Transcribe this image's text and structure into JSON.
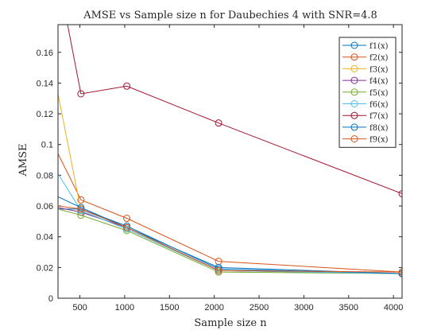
{
  "chart_data": {
    "type": "line",
    "title": "AMSE vs Sample size n for Daubechies 4 with SNR=4.8",
    "xlabel": "Sample size n",
    "ylabel": "AMSE",
    "xlim": [
      256,
      4096
    ],
    "ylim": [
      0,
      0.178
    ],
    "xticks": [
      500,
      1000,
      1500,
      2000,
      2500,
      3000,
      3500,
      4000
    ],
    "yticks": [
      0,
      0.02,
      0.04,
      0.06,
      0.08,
      0.1,
      0.12,
      0.14,
      0.16
    ],
    "x": [
      256,
      512,
      1024,
      2048,
      4096
    ],
    "grid": false,
    "legend_position": "top-right",
    "marker": "open-circle",
    "series": [
      {
        "name": "f1(x)",
        "color": "#0072BD",
        "values": [
          0.058,
          0.058,
          0.047,
          0.019,
          0.016
        ]
      },
      {
        "name": "f2(x)",
        "color": "#D95319",
        "values": [
          0.094,
          0.064,
          0.052,
          0.024,
          0.017
        ]
      },
      {
        "name": "f3(x)",
        "color": "#EDB120",
        "values": [
          0.133,
          0.057,
          0.045,
          0.018,
          0.016
        ]
      },
      {
        "name": "f4(x)",
        "color": "#7E2F8E",
        "values": [
          0.059,
          0.056,
          0.046,
          0.018,
          0.016
        ]
      },
      {
        "name": "f5(x)",
        "color": "#77AC30",
        "values": [
          0.058,
          0.054,
          0.044,
          0.017,
          0.016
        ]
      },
      {
        "name": "f6(x)",
        "color": "#4DBEEE",
        "values": [
          0.081,
          0.057,
          0.045,
          0.018,
          0.016
        ]
      },
      {
        "name": "f7(x)",
        "color": "#A2142F",
        "values": [
          0.21,
          0.133,
          0.138,
          0.114,
          0.068
        ]
      },
      {
        "name": "f8(x)",
        "color": "#0072BD",
        "values": [
          0.066,
          0.059,
          0.046,
          0.02,
          0.016
        ]
      },
      {
        "name": "f9(x)",
        "color": "#D95319",
        "values": [
          0.06,
          0.058,
          0.046,
          0.018,
          0.017
        ]
      }
    ]
  }
}
